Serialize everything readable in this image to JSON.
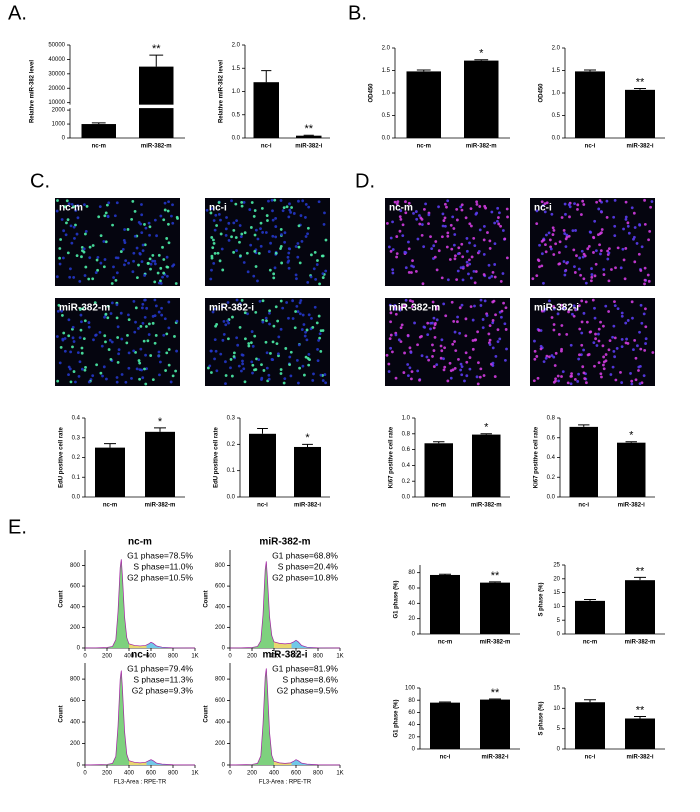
{
  "panel_labels": [
    "A.",
    "B.",
    "C.",
    "D.",
    "E."
  ],
  "images": {
    "C": [
      "nc-m",
      "nc-i",
      "miR-382-m",
      "miR-382-i"
    ],
    "D": [
      "nc-m",
      "nc-i",
      "miR-382-m",
      "miR-382-i"
    ]
  },
  "chart_data": [
    {
      "type": "bar",
      "ylabel": "Relative miR-382 level",
      "categories": [
        "nc-m",
        "miR-382-m"
      ],
      "values": [
        1000,
        35000
      ],
      "errors": [
        80,
        8000
      ],
      "ylim": [
        0,
        50000
      ],
      "axis_break": [
        2000,
        10000
      ],
      "yticks": [
        0,
        1000,
        2000,
        10000,
        20000,
        30000,
        40000,
        50000
      ],
      "color": "#000000",
      "annotations": [
        {
          "text": "**",
          "category": "miR-382-m"
        }
      ]
    },
    {
      "type": "bar",
      "ylabel": "Relative miR-382 level",
      "categories": [
        "nc-i",
        "miR-382-i"
      ],
      "values": [
        1.2,
        0.05
      ],
      "errors": [
        0.25,
        0.01
      ],
      "ylim": [
        0,
        2
      ],
      "yticks": [
        {
          "value": 0,
          "label": "0.0"
        },
        0.5,
        {
          "value": 1,
          "label": "1.0"
        },
        1.5,
        {
          "value": 2,
          "label": "2.0"
        }
      ],
      "color": "#000000",
      "annotations": [
        {
          "text": "**",
          "category": "miR-382-i"
        }
      ]
    },
    {
      "type": "bar",
      "ylabel": "OD450",
      "categories": [
        "nc-m",
        "miR-382-m"
      ],
      "values": [
        1.48,
        1.72
      ],
      "errors": [
        0.03,
        0.02
      ],
      "ylim": [
        0,
        2
      ],
      "yticks": [
        {
          "value": 0,
          "label": "0.0"
        },
        0.5,
        {
          "value": 1,
          "label": "1.0"
        },
        1.5,
        {
          "value": 2,
          "label": "2.0"
        }
      ],
      "color": "#000000",
      "annotations": [
        {
          "text": "*",
          "category": "miR-382-m"
        }
      ]
    },
    {
      "type": "bar",
      "ylabel": "OD450",
      "categories": [
        "nc-i",
        "miR-382-i"
      ],
      "values": [
        1.48,
        1.07
      ],
      "errors": [
        0.03,
        0.03
      ],
      "ylim": [
        0,
        2
      ],
      "yticks": [
        {
          "value": 0,
          "label": "0.0"
        },
        0.5,
        {
          "value": 1,
          "label": "1.0"
        },
        1.5,
        {
          "value": 2,
          "label": "2.0"
        }
      ],
      "color": "#000000",
      "annotations": [
        {
          "text": "**",
          "category": "miR-382-i"
        }
      ]
    },
    {
      "type": "bar",
      "ylabel": "EdU positive cell rate",
      "categories": [
        "nc-m",
        "miR-382-m"
      ],
      "values": [
        0.25,
        0.33
      ],
      "errors": [
        0.02,
        0.02
      ],
      "ylim": [
        0,
        0.4
      ],
      "yticks": [
        {
          "value": 0,
          "label": "0.0"
        },
        0.1,
        0.2,
        0.3,
        0.4
      ],
      "color": "#000000",
      "annotations": [
        {
          "text": "*",
          "category": "miR-382-m"
        }
      ]
    },
    {
      "type": "bar",
      "ylabel": "EdU positive cell rate",
      "categories": [
        "nc-i",
        "miR-382-i"
      ],
      "values": [
        0.24,
        0.19
      ],
      "errors": [
        0.02,
        0.01
      ],
      "ylim": [
        0,
        0.3
      ],
      "yticks": [
        {
          "value": 0,
          "label": "0.0"
        },
        0.1,
        0.2,
        0.3
      ],
      "color": "#000000",
      "annotations": [
        {
          "text": "*",
          "category": "miR-382-i"
        }
      ]
    },
    {
      "type": "bar",
      "ylabel": "Ki67 positive cell rate",
      "categories": [
        "nc-m",
        "miR-382-m"
      ],
      "values": [
        0.68,
        0.79
      ],
      "errors": [
        0.02,
        0.01
      ],
      "ylim": [
        0,
        1
      ],
      "yticks": [
        {
          "value": 0,
          "label": "0.0"
        },
        0.2,
        0.4,
        0.6,
        0.8,
        {
          "value": 1,
          "label": "1.0"
        }
      ],
      "color": "#000000",
      "annotations": [
        {
          "text": "*",
          "category": "miR-382-m"
        }
      ]
    },
    {
      "type": "bar",
      "ylabel": "Ki67 positive cell rate",
      "categories": [
        "nc-i",
        "miR-382-i"
      ],
      "values": [
        0.71,
        0.55
      ],
      "errors": [
        0.02,
        0.01
      ],
      "ylim": [
        0,
        0.8
      ],
      "yticks": [
        {
          "value": 0,
          "label": "0.0"
        },
        0.2,
        0.4,
        0.6,
        0.8
      ],
      "color": "#000000",
      "annotations": [
        {
          "text": "*",
          "category": "miR-382-i"
        }
      ]
    },
    {
      "type": "area",
      "title": "nc-m",
      "stats": [
        "G1 phase=78.5%",
        "S phase=11.0%",
        "G2 phase=10.5%"
      ],
      "ylabel": "Count",
      "x": [
        0,
        100,
        200,
        250,
        280,
        300,
        320,
        330,
        340,
        360,
        380,
        400,
        450,
        500,
        550,
        580,
        600,
        620,
        650,
        700,
        800,
        1000
      ],
      "values": [
        0,
        2,
        5,
        15,
        80,
        350,
        780,
        860,
        700,
        300,
        100,
        40,
        25,
        20,
        25,
        40,
        55,
        45,
        20,
        8,
        2,
        0
      ],
      "xlim": [
        0,
        1000
      ],
      "ylim": [
        0,
        950
      ],
      "xticks": [
        0,
        200,
        400,
        600,
        800,
        {
          "value": 1000,
          "label": "1K"
        }
      ],
      "yticks": [
        0,
        200,
        400,
        600,
        800
      ]
    },
    {
      "type": "area",
      "title": "miR-382-m",
      "stats": [
        "G1 phase=68.8%",
        "S phase=20.4%",
        "G2 phase=10.8%"
      ],
      "ylabel": "Count",
      "x": [
        0,
        100,
        200,
        250,
        280,
        300,
        320,
        330,
        340,
        360,
        380,
        400,
        450,
        500,
        550,
        580,
        600,
        620,
        650,
        700,
        800,
        1000
      ],
      "values": [
        0,
        2,
        5,
        15,
        70,
        320,
        760,
        840,
        680,
        300,
        120,
        60,
        45,
        40,
        45,
        60,
        75,
        60,
        25,
        8,
        2,
        0
      ],
      "xlim": [
        0,
        1000
      ],
      "ylim": [
        0,
        950
      ],
      "xticks": [
        0,
        200,
        400,
        600,
        800,
        {
          "value": 1000,
          "label": "1K"
        }
      ],
      "yticks": [
        0,
        200,
        400,
        600,
        800
      ]
    },
    {
      "type": "area",
      "title": "nc-i",
      "stats": [
        "G1 phase=79.4%",
        "S phase=11.3%",
        "G2 phase=9.3%"
      ],
      "ylabel": "Count",
      "xlabel": "FL3-Area : RPE-TR",
      "x": [
        0,
        100,
        200,
        250,
        280,
        300,
        320,
        330,
        340,
        360,
        380,
        400,
        450,
        500,
        550,
        580,
        600,
        620,
        650,
        700,
        800,
        1000
      ],
      "values": [
        0,
        2,
        5,
        15,
        80,
        360,
        800,
        880,
        720,
        310,
        100,
        40,
        25,
        20,
        25,
        40,
        50,
        40,
        18,
        8,
        2,
        0
      ],
      "xlim": [
        0,
        1000
      ],
      "ylim": [
        0,
        950
      ],
      "xticks": [
        0,
        200,
        400,
        600,
        800,
        {
          "value": 1000,
          "label": "1K"
        }
      ],
      "yticks": [
        0,
        200,
        400,
        600,
        800
      ]
    },
    {
      "type": "area",
      "title": "miR-382-i",
      "stats": [
        "G1 phase=81.9%",
        "S phase=8.6%",
        "G2 phase=9.5%"
      ],
      "ylabel": "Count",
      "xlabel": "FL3-Area : RPE-TR",
      "x": [
        0,
        100,
        200,
        250,
        280,
        300,
        320,
        330,
        340,
        360,
        380,
        400,
        450,
        500,
        550,
        580,
        600,
        620,
        650,
        700,
        800,
        1000
      ],
      "values": [
        0,
        2,
        5,
        15,
        85,
        380,
        820,
        900,
        730,
        300,
        90,
        35,
        20,
        15,
        20,
        35,
        50,
        40,
        18,
        8,
        2,
        0
      ],
      "xlim": [
        0,
        1000
      ],
      "ylim": [
        0,
        950
      ],
      "xticks": [
        0,
        200,
        400,
        600,
        800,
        {
          "value": 1000,
          "label": "1K"
        }
      ],
      "yticks": [
        0,
        200,
        400,
        600,
        800
      ]
    },
    {
      "type": "bar",
      "ylabel": "G1 phase (%)",
      "categories": [
        "nc-m",
        "miR-382-m"
      ],
      "values": [
        77,
        67
      ],
      "errors": [
        1,
        1
      ],
      "ylim": [
        0,
        90
      ],
      "yticks": [
        0,
        20,
        40,
        60,
        80
      ],
      "color": "#000000",
      "annotations": [
        {
          "text": "**",
          "category": "miR-382-m"
        }
      ]
    },
    {
      "type": "bar",
      "ylabel": "S phase (%)",
      "categories": [
        "nc-m",
        "miR-382-m"
      ],
      "values": [
        12,
        19.5
      ],
      "errors": [
        0.5,
        1
      ],
      "ylim": [
        0,
        25
      ],
      "yticks": [
        0,
        5,
        10,
        15,
        20,
        25
      ],
      "color": "#000000",
      "annotations": [
        {
          "text": "**",
          "category": "miR-382-m"
        }
      ]
    },
    {
      "type": "bar",
      "ylabel": "G1 phase (%)",
      "categories": [
        "nc-i",
        "miR-382-i"
      ],
      "values": [
        76,
        81
      ],
      "errors": [
        1,
        1
      ],
      "ylim": [
        0,
        100
      ],
      "yticks": [
        0,
        20,
        40,
        60,
        80,
        100
      ],
      "color": "#000000",
      "annotations": [
        {
          "text": "**",
          "category": "miR-382-i"
        }
      ]
    },
    {
      "type": "bar",
      "ylabel": "S phase (%)",
      "categories": [
        "nc-i",
        "miR-382-i"
      ],
      "values": [
        11.5,
        7.5
      ],
      "errors": [
        0.6,
        0.5
      ],
      "ylim": [
        0,
        15
      ],
      "yticks": [
        0,
        5,
        10,
        15
      ],
      "color": "#000000",
      "annotations": [
        {
          "text": "**",
          "category": "miR-382-i"
        }
      ]
    }
  ]
}
